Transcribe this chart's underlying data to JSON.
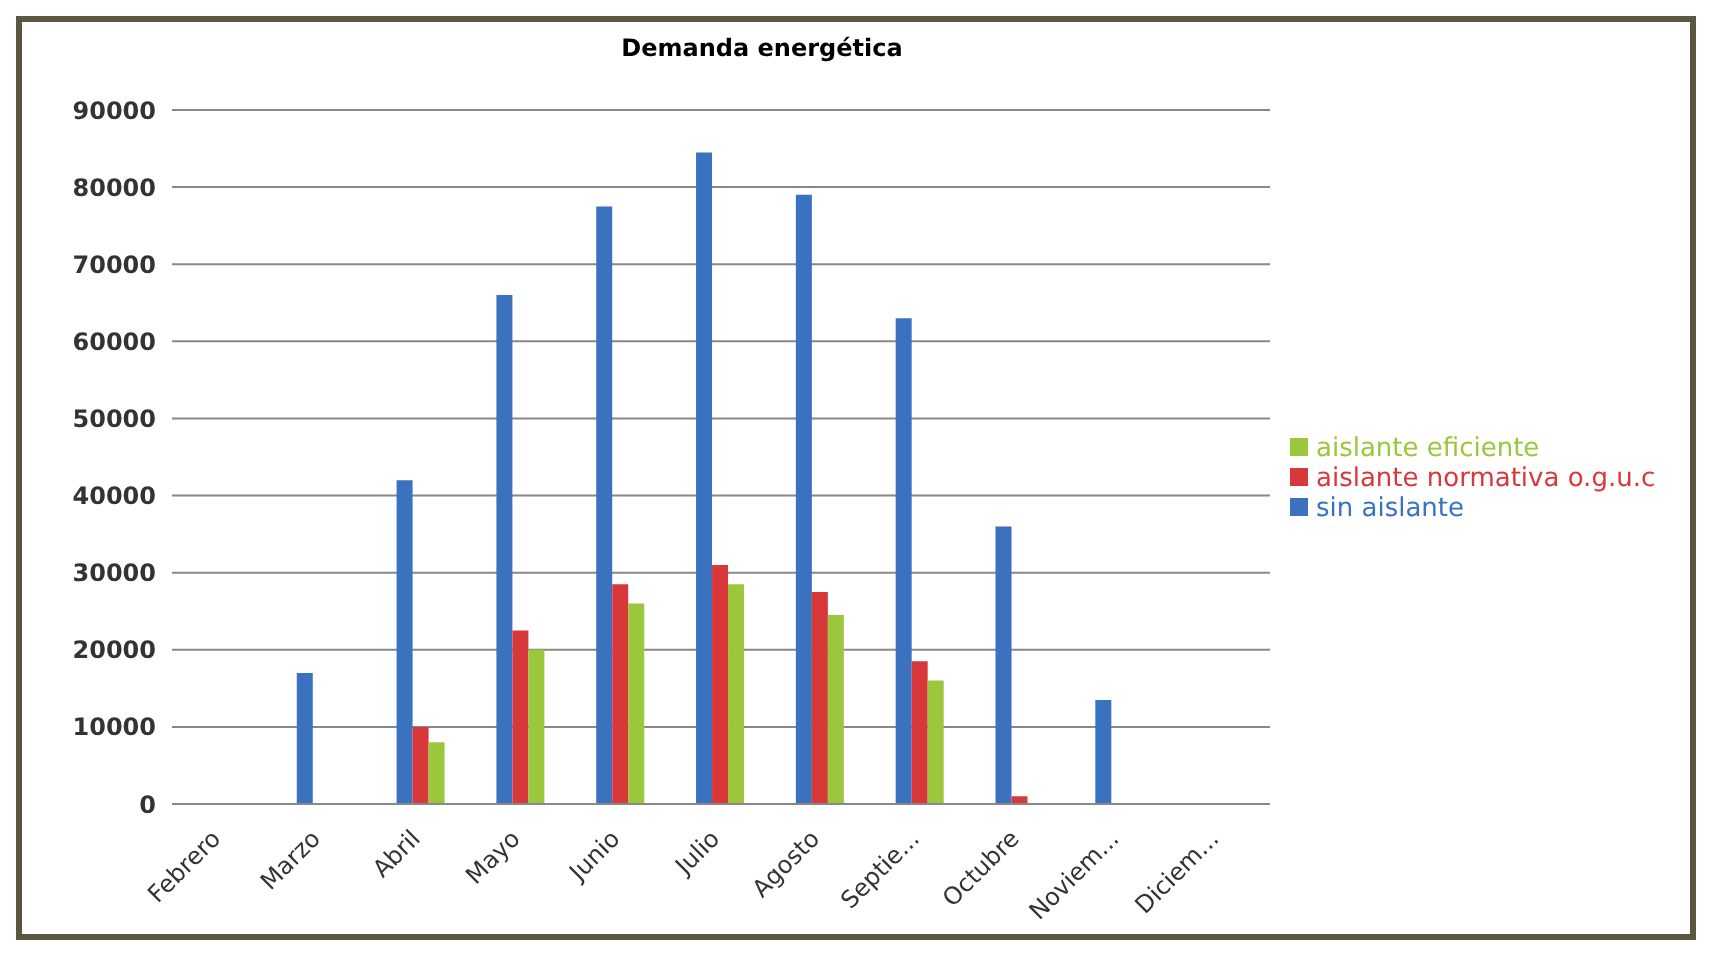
{
  "chart_data": {
    "type": "bar",
    "title": "Demanda energética",
    "categories": [
      "Febrero",
      "Marzo",
      "Abril",
      "Mayo",
      "Junio",
      "Julio",
      "Agosto",
      "Septie...",
      "Octubre",
      "Noviem...",
      "Diciem..."
    ],
    "series": [
      {
        "name": "sin aislante",
        "color": "#3a72c0",
        "values": [
          0,
          17000,
          42000,
          66000,
          77500,
          84500,
          79000,
          63000,
          36000,
          13500,
          0
        ]
      },
      {
        "name": "aislante normativa o.g.u.c",
        "color": "#d9383a",
        "values": [
          0,
          0,
          10000,
          22500,
          28500,
          31000,
          27500,
          18500,
          1000,
          0,
          0
        ]
      },
      {
        "name": "aislante eficiente",
        "color": "#9cc63c",
        "values": [
          0,
          0,
          8000,
          20000,
          26000,
          28500,
          24500,
          16000,
          0,
          0,
          0
        ]
      }
    ],
    "ylim": [
      0,
      90000
    ],
    "yticks": [
      0,
      10000,
      20000,
      30000,
      40000,
      50000,
      60000,
      70000,
      80000,
      90000
    ],
    "grid": "y",
    "legend": "right"
  }
}
